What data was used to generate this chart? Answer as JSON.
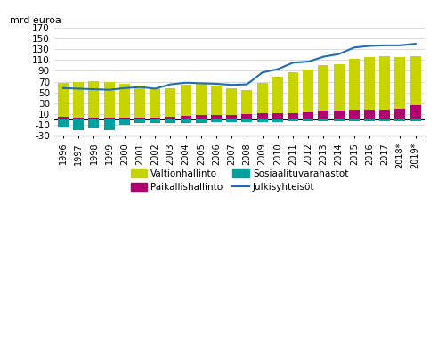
{
  "years": [
    "1996",
    "1997",
    "1998",
    "1999",
    "2000",
    "2001",
    "2002",
    "2003",
    "2004",
    "2005",
    "2006",
    "2007",
    "2008",
    "2009",
    "2010",
    "2011",
    "2012",
    "2013",
    "2014",
    "2015",
    "2016",
    "2017",
    "2018*",
    "2019*"
  ],
  "valtionhallinto": [
    67,
    70,
    71,
    70,
    66,
    63,
    57,
    57,
    65,
    67,
    63,
    57,
    54,
    67,
    79,
    87,
    93,
    100,
    103,
    112,
    115,
    117,
    116,
    117
  ],
  "paikallishallinto": [
    5,
    4,
    4,
    4,
    4,
    4,
    4,
    5,
    7,
    9,
    9,
    9,
    10,
    12,
    12,
    12,
    14,
    16,
    17,
    18,
    19,
    19,
    20,
    26
  ],
  "sosiaalituvarahastot": [
    -14,
    -19,
    -16,
    -19,
    -10,
    -7,
    -6,
    -6,
    -6,
    -6,
    -5,
    -5,
    -4,
    -4,
    -4,
    -3,
    -3,
    -3,
    -3,
    -3,
    -3,
    -3,
    -3,
    -3
  ],
  "julkisyhteisot": [
    58,
    57,
    56,
    55,
    58,
    60,
    57,
    65,
    68,
    67,
    66,
    64,
    65,
    87,
    93,
    105,
    107,
    116,
    121,
    133,
    136,
    137,
    137,
    140
  ],
  "bar_color_valtionhallinto": "#c8d400",
  "bar_color_paikallishallinto": "#b0006e",
  "bar_color_sosiaalituvarahastot": "#00a0a0",
  "line_color_julkisyhteisot": "#1f6eb5",
  "ylabel": "mrd euroa",
  "ylim_min": -30,
  "ylim_max": 170,
  "yticks": [
    -30,
    -10,
    10,
    30,
    50,
    70,
    90,
    110,
    130,
    150,
    170
  ],
  "background_color": "#ffffff",
  "grid_color": "#cccccc"
}
